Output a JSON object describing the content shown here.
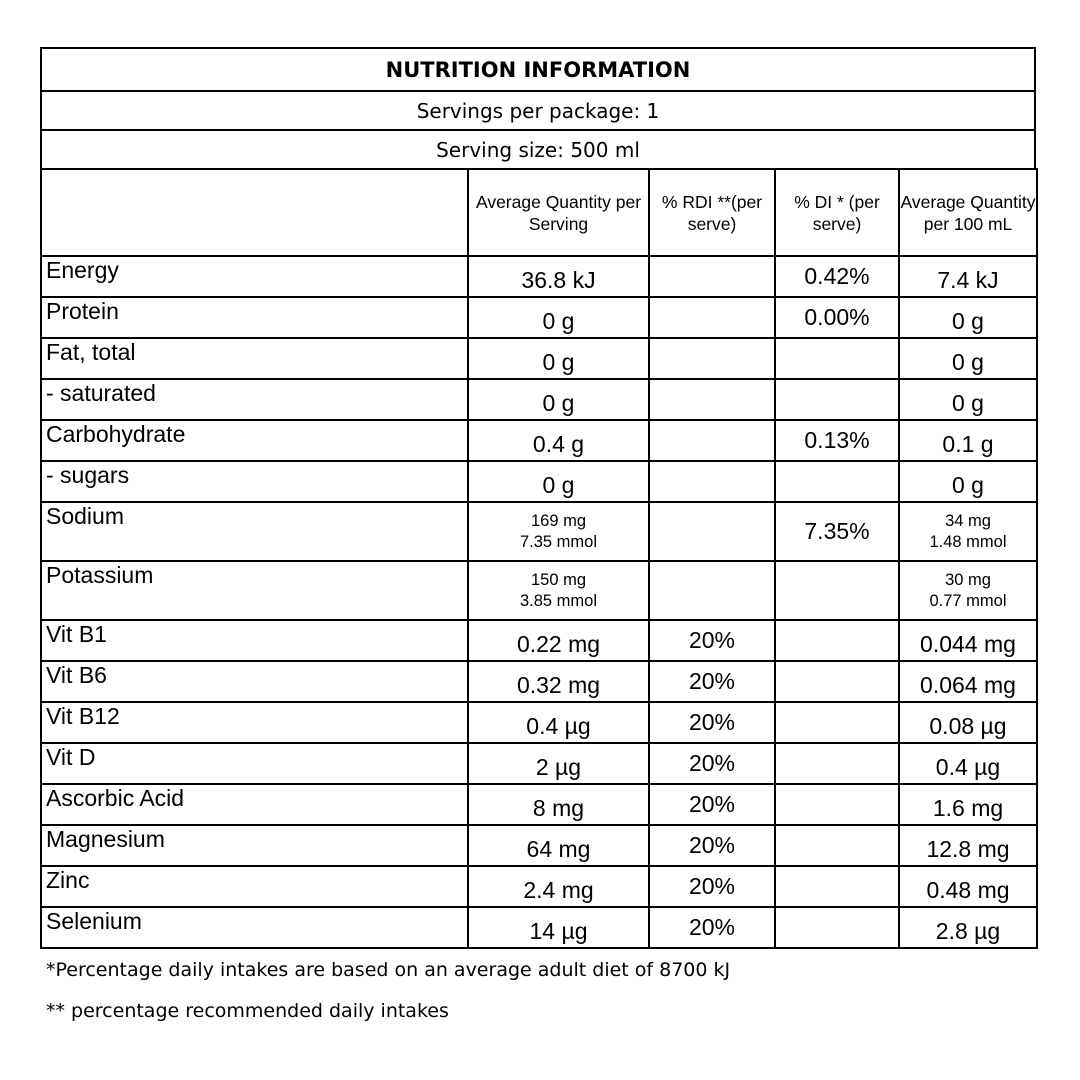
{
  "title": "NUTRITION INFORMATION",
  "servings_per_package": "Servings per package: 1",
  "serving_size": "Serving size: 500 ml",
  "headers": {
    "blank": "",
    "avg_serving": "Average Quantity per Serving",
    "rdi": "% RDI **(per serve)",
    "di": "% DI * (per serve)",
    "avg_100": "Average Quantity per 100 mL"
  },
  "rows": [
    {
      "name": "Energy",
      "serve": "36.8 kJ",
      "rdi": "",
      "di": "0.42%",
      "per100": "7.4 kJ"
    },
    {
      "name": "Protein",
      "serve": "0 g",
      "rdi": "",
      "di": "0.00%",
      "per100": "0 g"
    },
    {
      "name": "Fat, total",
      "serve": "0 g",
      "rdi": "",
      "di": "",
      "per100": "0 g"
    },
    {
      "name": "- saturated",
      "serve": "0 g",
      "rdi": "",
      "di": "",
      "per100": "0 g"
    },
    {
      "name": "Carbohydrate",
      "serve": "0.4 g",
      "rdi": "",
      "di": "0.13%",
      "per100": "0.1 g"
    },
    {
      "name": "- sugars",
      "serve": "0 g",
      "rdi": "",
      "di": "",
      "per100": "0 g"
    },
    {
      "name": "Sodium",
      "serve": "169 mg",
      "serve2": "7.35 mmol",
      "rdi": "",
      "di": "7.35%",
      "per100": "34 mg",
      "per100_2": "1.48 mmol"
    },
    {
      "name": "Potassium",
      "serve": "150 mg",
      "serve2": "3.85 mmol",
      "rdi": "",
      "di": "",
      "per100": "30 mg",
      "per100_2": "0.77 mmol"
    },
    {
      "name": "Vit B1",
      "serve": "0.22 mg",
      "rdi": "20%",
      "di": "",
      "per100": "0.044 mg"
    },
    {
      "name": "Vit B6",
      "serve": "0.32 mg",
      "rdi": "20%",
      "di": "",
      "per100": "0.064 mg"
    },
    {
      "name": "Vit B12",
      "serve": "0.4 µg",
      "rdi": "20%",
      "di": "",
      "per100": "0.08 µg"
    },
    {
      "name": "Vit D",
      "serve": "2 µg",
      "rdi": "20%",
      "di": "",
      "per100": "0.4 µg"
    },
    {
      "name": "Ascorbic Acid",
      "serve": "8 mg",
      "rdi": "20%",
      "di": "",
      "per100": "1.6 mg"
    },
    {
      "name": "Magnesium",
      "serve": "64 mg",
      "rdi": "20%",
      "di": "",
      "per100": "12.8 mg"
    },
    {
      "name": "Zinc",
      "serve": "2.4 mg",
      "rdi": "20%",
      "di": "",
      "per100": "0.48 mg"
    },
    {
      "name": "Selenium",
      "serve": "14 µg",
      "rdi": "20%",
      "di": "",
      "per100": "2.8 µg"
    }
  ],
  "notes": [
    "*Percentage daily intakes are based on an average adult diet of 8700 kJ",
    "** percentage recommended daily intakes"
  ]
}
